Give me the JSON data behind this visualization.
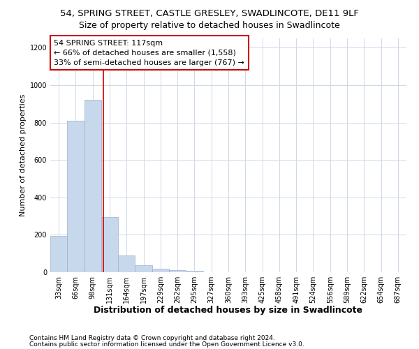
{
  "title_line1": "54, SPRING STREET, CASTLE GRESLEY, SWADLINCOTE, DE11 9LF",
  "title_line2": "Size of property relative to detached houses in Swadlincote",
  "xlabel": "Distribution of detached houses by size in Swadlincote",
  "ylabel": "Number of detached properties",
  "footnote1": "Contains HM Land Registry data © Crown copyright and database right 2024.",
  "footnote2": "Contains public sector information licensed under the Open Government Licence v3.0.",
  "annotation_line1": "54 SPRING STREET: 117sqm",
  "annotation_line2": "← 66% of detached houses are smaller (1,558)",
  "annotation_line3": "33% of semi-detached houses are larger (767) →",
  "bar_color": "#c8d8ec",
  "bar_edge_color": "#9ab0cc",
  "vline_color": "#cc0000",
  "annotation_box_edge_color": "#cc0000",
  "annotation_box_face_color": "#ffffff",
  "grid_color": "#d0d8e8",
  "background_color": "#ffffff",
  "categories": [
    "33sqm",
    "66sqm",
    "98sqm",
    "131sqm",
    "164sqm",
    "197sqm",
    "229sqm",
    "262sqm",
    "295sqm",
    "327sqm",
    "360sqm",
    "393sqm",
    "425sqm",
    "458sqm",
    "491sqm",
    "524sqm",
    "556sqm",
    "589sqm",
    "622sqm",
    "654sqm",
    "687sqm"
  ],
  "values": [
    193,
    810,
    920,
    295,
    88,
    38,
    20,
    13,
    8,
    0,
    0,
    0,
    0,
    0,
    0,
    0,
    0,
    0,
    0,
    0,
    0
  ],
  "ylim": [
    0,
    1250
  ],
  "yticks": [
    0,
    200,
    400,
    600,
    800,
    1000,
    1200
  ],
  "vline_x_index": 2.62,
  "title_fontsize": 9.5,
  "subtitle_fontsize": 9,
  "xlabel_fontsize": 9,
  "ylabel_fontsize": 8,
  "tick_fontsize": 7,
  "annotation_fontsize": 8,
  "footnote_fontsize": 6.5
}
